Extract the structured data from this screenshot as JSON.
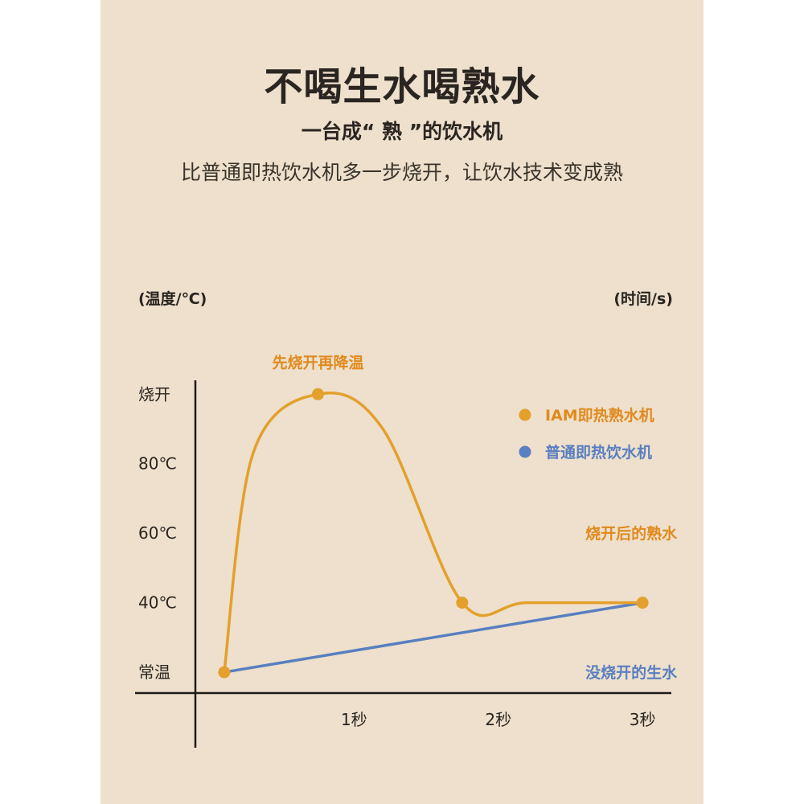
{
  "header": {
    "title": "不喝生水喝熟水",
    "subtitle": "一台成“ 熟 ”的饮水机",
    "tagline": "比普通即热饮水机多一步烧开，让饮水技术变成熟"
  },
  "colors": {
    "background": "#eee0cc",
    "text": "#2a2521",
    "orange": "#e3a02c",
    "blue": "#5a7fc0",
    "annotation": "#e08a1e"
  },
  "chart_data": {
    "type": "line",
    "ylabel": "(温度/℃)",
    "xlabel": "(时间/s)",
    "x_ticks": [
      {
        "value": 1,
        "label": "1秒"
      },
      {
        "value": 2,
        "label": "2秒"
      },
      {
        "value": 3,
        "label": "3秒"
      }
    ],
    "y_ticks": [
      {
        "label": "烧开",
        "value": 100
      },
      {
        "label": "80℃",
        "value": 80
      },
      {
        "label": "60℃",
        "value": 60
      },
      {
        "label": "40℃",
        "value": 40
      },
      {
        "label": "常温",
        "value": 20
      }
    ],
    "xlim": [
      -0.1,
      3.2
    ],
    "ylim": [
      14,
      104
    ],
    "grid": false,
    "legend_position": "top-right",
    "series": [
      {
        "name": "IAM即热熟水机",
        "color": "#e3a02c",
        "smooth": true,
        "points": [
          {
            "x": 0.1,
            "y": 20
          },
          {
            "x": 0.3,
            "y": 83
          },
          {
            "x": 0.75,
            "y": 100
          },
          {
            "x": 1.2,
            "y": 90
          },
          {
            "x": 1.75,
            "y": 40
          },
          {
            "x": 2.2,
            "y": 40
          },
          {
            "x": 3.0,
            "y": 40
          }
        ],
        "markers": [
          {
            "x": 0.1,
            "y": 20
          },
          {
            "x": 0.75,
            "y": 100
          },
          {
            "x": 1.75,
            "y": 40
          },
          {
            "x": 3.0,
            "y": 40
          }
        ]
      },
      {
        "name": "普通即热饮水机",
        "color": "#5a7fc0",
        "smooth": false,
        "points": [
          {
            "x": 0.1,
            "y": 20
          },
          {
            "x": 3.0,
            "y": 40
          }
        ],
        "markers": []
      }
    ],
    "annotations": [
      {
        "text": "先烧开再降温",
        "x": 0.75,
        "y": 100,
        "position": "above"
      },
      {
        "text": "烧开后的熟水",
        "x": 3.0,
        "y": 60,
        "position": "left"
      },
      {
        "text": "没烧开的生水",
        "x": 3.0,
        "y": 20,
        "position": "left"
      }
    ]
  }
}
